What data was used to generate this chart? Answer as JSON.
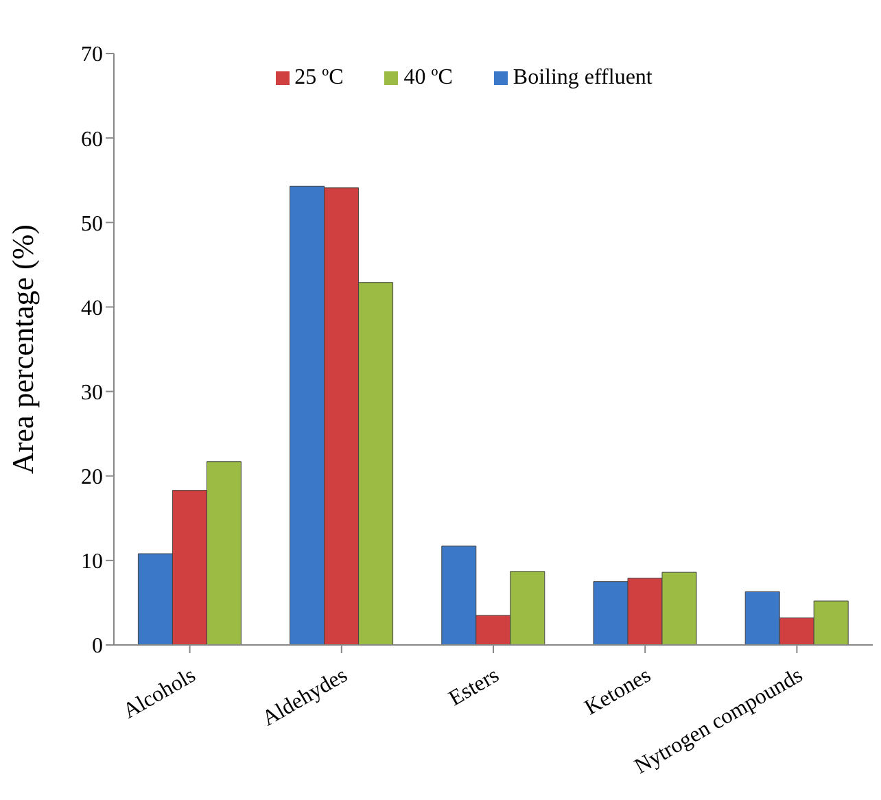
{
  "chart_data": {
    "type": "bar",
    "ylabel": "Area percentage (%)",
    "categories": [
      "Alcohols",
      "Aldehydes",
      "Esters",
      "Ketones",
      "Nytrogen compounds"
    ],
    "series": [
      {
        "name": "Boiling effluent",
        "color": "#3c78c8",
        "values": [
          10.8,
          54.3,
          11.7,
          7.5,
          6.3
        ]
      },
      {
        "name": "25 ºC",
        "color": "#d04040",
        "values": [
          18.3,
          54.1,
          3.5,
          7.9,
          3.2
        ]
      },
      {
        "name": "40 ºC",
        "color": "#9bbb45",
        "values": [
          21.7,
          42.9,
          8.7,
          8.6,
          5.2
        ]
      }
    ],
    "ylim": [
      0,
      70
    ],
    "yticks": [
      0,
      10,
      20,
      30,
      40,
      50,
      60,
      70
    ],
    "grid": false,
    "legend": "top"
  }
}
